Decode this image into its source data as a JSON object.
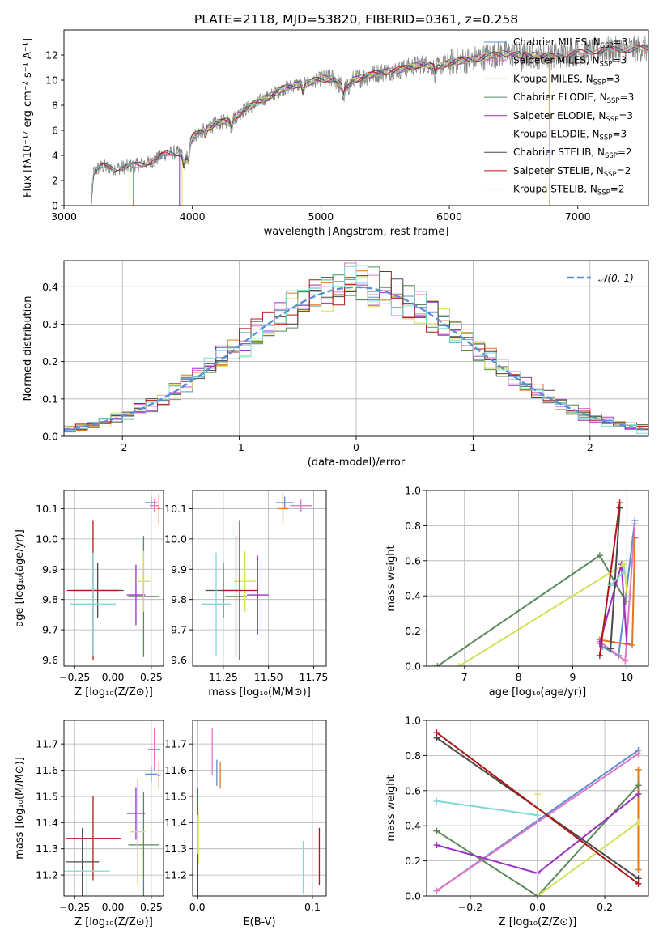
{
  "figure_title": "PLATE=2118, MJD=53820, FIBERID=0361, z=0.258",
  "colors": {
    "Chabrier MILES": "#5b8dd6",
    "Salpeter MILES": "#e377c2",
    "Kroupa MILES": "#e0781c",
    "Chabrier ELODIE": "#5a8a5c",
    "Salpeter ELODIE": "#9b30c4",
    "Kroupa ELODIE": "#d4e055",
    "Chabrier STELIB": "#4a4a4a",
    "Salpeter STELIB": "#b01818",
    "Kroupa STELIB": "#7fd8d8",
    "gaussian": "#5b8dd6",
    "data": "#888888"
  },
  "chart_data": [
    {
      "id": "spectrum",
      "type": "line",
      "xlabel": "wavelength [Angstrom, rest frame]",
      "ylabel": "Flux [fλ10⁻¹⁷ erg cm⁻² s⁻¹ A⁻¹]",
      "xlim": [
        3000,
        7550
      ],
      "ylim": [
        0,
        14
      ],
      "xticks": [
        3000,
        4000,
        5000,
        6000,
        7000
      ],
      "yticks": [
        0,
        2,
        4,
        6,
        8,
        10,
        12
      ],
      "legend_position": "right",
      "legend": [
        {
          "text": "Chabrier MILES, N",
          "sub": "SSP",
          "tail": "=3",
          "color": "#5b8dd6"
        },
        {
          "text": "Salpeter MILES, N",
          "sub": "SSP",
          "tail": "=3",
          "color": "#e377c2"
        },
        {
          "text": "Kroupa MILES, N",
          "sub": "SSP",
          "tail": "=3",
          "color": "#e0781c"
        },
        {
          "text": "Chabrier ELODIE, N",
          "sub": "SSP",
          "tail": "=3",
          "color": "#5a8a5c"
        },
        {
          "text": "Salpeter ELODIE, N",
          "sub": "SSP",
          "tail": "=3",
          "color": "#9b30c4"
        },
        {
          "text": "Kroupa ELODIE, N",
          "sub": "SSP",
          "tail": "=3",
          "color": "#d4e055"
        },
        {
          "text": "Chabrier STELIB, N",
          "sub": "SSP",
          "tail": "=2",
          "color": "#4a4a4a"
        },
        {
          "text": "Salpeter STELIB, N",
          "sub": "SSP",
          "tail": "=2",
          "color": "#b01818"
        },
        {
          "text": "Kroupa STELIB, N",
          "sub": "SSP",
          "tail": "=2",
          "color": "#7fd8d8"
        }
      ],
      "continuum": [
        [
          3210,
          0
        ],
        [
          3230,
          2.6
        ],
        [
          3260,
          2.9
        ],
        [
          3300,
          3.1
        ],
        [
          3400,
          3.0
        ],
        [
          3500,
          3.1
        ],
        [
          3600,
          3.3
        ],
        [
          3700,
          3.6
        ],
        [
          3800,
          4.2
        ],
        [
          3900,
          4.2
        ],
        [
          3950,
          3.8
        ],
        [
          4000,
          5.5
        ],
        [
          4100,
          6.1
        ],
        [
          4200,
          6.6
        ],
        [
          4300,
          6.8
        ],
        [
          4400,
          7.6
        ],
        [
          4500,
          8.2
        ],
        [
          4600,
          8.7
        ],
        [
          4700,
          9.3
        ],
        [
          4800,
          9.6
        ],
        [
          4900,
          9.8
        ],
        [
          5000,
          10.1
        ],
        [
          5100,
          10.1
        ],
        [
          5150,
          9.6
        ],
        [
          5200,
          9.3
        ],
        [
          5250,
          10.0
        ],
        [
          5350,
          10.3
        ],
        [
          5450,
          10.6
        ],
        [
          5600,
          10.8
        ],
        [
          5800,
          11.3
        ],
        [
          5900,
          11.0
        ],
        [
          6000,
          11.4
        ],
        [
          6200,
          11.7
        ],
        [
          6400,
          12.1
        ],
        [
          6600,
          12.0
        ],
        [
          6800,
          11.9
        ],
        [
          7000,
          12.2
        ],
        [
          7200,
          12.4
        ],
        [
          7550,
          12.5
        ]
      ],
      "model_starts": {
        "Chabrier MILES": 3540,
        "Salpeter MILES": 3540,
        "Kroupa MILES": 3540,
        "Chabrier ELODIE": 3900,
        "Salpeter ELODIE": 3900,
        "Kroupa ELODIE": 3920,
        "Chabrier STELIB": 3210,
        "Salpeter STELIB": 3210,
        "Kroupa STELIB": 3210
      },
      "model_ends": {
        "Kroupa ELODIE": 6780,
        "Chabrier ELODIE": 6780,
        "Salpeter ELODIE": 6780
      }
    },
    {
      "id": "residuals",
      "type": "histogram",
      "xlabel": "(data-model)/error",
      "ylabel": "Normed distribution",
      "xlim": [
        -2.5,
        2.5
      ],
      "ylim": [
        0,
        0.47
      ],
      "xticks": [
        -2,
        -1,
        0,
        1,
        2
      ],
      "yticks": [
        0.0,
        0.1,
        0.2,
        0.3,
        0.4
      ],
      "grid": true,
      "legend_label": "𝒩(0, 1)",
      "legend_position": "top-right",
      "bins": {
        "start": -2.5,
        "width": 0.1,
        "count": 50
      }
    },
    {
      "id": "age_vs_Z",
      "type": "errorbar",
      "xlabel": "Z [log₁₀(Z/Z⊙)]",
      "ylabel": "age  [log₁₀(age/yr)]",
      "xlim": [
        -0.32,
        0.33
      ],
      "ylim": [
        9.58,
        10.16
      ],
      "xticks": [
        -0.25,
        0.0,
        0.25
      ],
      "xticklabels": [
        "−0.25",
        "0.00",
        "0.25"
      ],
      "yticks": [
        9.6,
        9.7,
        9.8,
        9.9,
        10.0,
        10.1
      ],
      "points": [
        {
          "model": "Chabrier MILES",
          "x": 0.25,
          "xerr": 0.04,
          "y": 10.12,
          "yerr": 0.02
        },
        {
          "model": "Salpeter MILES",
          "x": 0.27,
          "xerr": 0.03,
          "y": 10.11,
          "yerr": 0.02
        },
        {
          "model": "Kroupa MILES",
          "x": 0.3,
          "xerr": 0.01,
          "y": 10.1,
          "yerr": 0.05
        },
        {
          "model": "Chabrier ELODIE",
          "x": 0.2,
          "xerr": 0.1,
          "y": 9.81,
          "yerr": 0.2
        },
        {
          "model": "Salpeter ELODIE",
          "x": 0.15,
          "xerr": 0.06,
          "y": 9.815,
          "yerr": 0.1
        },
        {
          "model": "Kroupa ELODIE",
          "x": 0.2,
          "xerr": 0.05,
          "y": 9.86,
          "yerr": 0.1
        },
        {
          "model": "Chabrier STELIB",
          "x": -0.1,
          "xerr": 0.17,
          "y": 9.83,
          "yerr": 0.09
        },
        {
          "model": "Salpeter STELIB",
          "x": -0.13,
          "xerr": 0.17,
          "y": 9.83,
          "yerr": 0.23
        },
        {
          "model": "Kroupa STELIB",
          "x": -0.13,
          "xerr": 0.15,
          "y": 9.785,
          "yerr": 0.17
        }
      ]
    },
    {
      "id": "age_vs_mass",
      "type": "errorbar",
      "xlabel": "mass [log₁₀(M/M⊙)]",
      "xlim": [
        11.08,
        11.82
      ],
      "ylim": [
        9.58,
        10.16
      ],
      "xticks": [
        11.25,
        11.5,
        11.75
      ],
      "xticklabels": [
        "11.25",
        "11.50",
        "11.75"
      ],
      "yticks": [
        9.6,
        9.7,
        9.8,
        9.9,
        10.0,
        10.1
      ],
      "points": [
        {
          "model": "Chabrier MILES",
          "x": 11.59,
          "xerr": 0.05,
          "y": 10.12,
          "yerr": 0.02
        },
        {
          "model": "Salpeter MILES",
          "x": 11.68,
          "xerr": 0.06,
          "y": 10.11,
          "yerr": 0.02
        },
        {
          "model": "Kroupa MILES",
          "x": 11.58,
          "xerr": 0.03,
          "y": 10.1,
          "yerr": 0.05
        },
        {
          "model": "Chabrier ELODIE",
          "x": 11.32,
          "xerr": 0.06,
          "y": 9.81,
          "yerr": 0.2
        },
        {
          "model": "Salpeter ELODIE",
          "x": 11.44,
          "xerr": 0.06,
          "y": 9.815,
          "yerr": 0.13
        },
        {
          "model": "Kroupa ELODIE",
          "x": 11.37,
          "xerr": 0.06,
          "y": 9.86,
          "yerr": 0.1
        },
        {
          "model": "Chabrier STELIB",
          "x": 11.25,
          "xerr": 0.1,
          "y": 9.83,
          "yerr": 0.09
        },
        {
          "model": "Salpeter STELIB",
          "x": 11.34,
          "xerr": 0.1,
          "y": 9.83,
          "yerr": 0.23
        },
        {
          "model": "Kroupa STELIB",
          "x": 11.21,
          "xerr": 0.08,
          "y": 9.785,
          "yerr": 0.17
        }
      ]
    },
    {
      "id": "weight_vs_age",
      "type": "line",
      "xlabel": "age  [log₁₀(age/yr)]",
      "ylabel": "mass weight",
      "xlim": [
        6.3,
        10.4
      ],
      "ylim": [
        0,
        1.0
      ],
      "xticks": [
        7,
        8,
        9,
        10
      ],
      "yticks": [
        0.0,
        0.2,
        0.4,
        0.6,
        0.8,
        1.0
      ],
      "series": [
        {
          "model": "Chabrier MILES",
          "points": [
            [
              9.55,
              0.11
            ],
            [
              9.85,
              0.06
            ],
            [
              10.15,
              0.83
            ]
          ]
        },
        {
          "model": "Salpeter MILES",
          "points": [
            [
              9.5,
              0.14
            ],
            [
              9.97,
              0.03
            ],
            [
              10.15,
              0.81
            ]
          ]
        },
        {
          "model": "Kroupa MILES",
          "points": [
            [
              9.5,
              0.15
            ],
            [
              10.1,
              0.12
            ],
            [
              10.15,
              0.73
            ]
          ]
        },
        {
          "model": "Chabrier ELODIE",
          "points": [
            [
              6.5,
              0.0
            ],
            [
              9.5,
              0.63
            ],
            [
              9.98,
              0.37
            ]
          ]
        },
        {
          "model": "Salpeter ELODIE",
          "points": [
            [
              9.5,
              0.13
            ],
            [
              9.9,
              0.58
            ],
            [
              10.0,
              0.13
            ]
          ]
        },
        {
          "model": "Kroupa ELODIE",
          "points": [
            [
              6.9,
              0.0
            ],
            [
              9.95,
              0.58
            ],
            [
              10.0,
              0.42
            ]
          ]
        },
        {
          "model": "Chabrier STELIB",
          "points": [
            [
              9.7,
              0.1
            ],
            [
              9.87,
              0.9
            ]
          ]
        },
        {
          "model": "Salpeter STELIB",
          "points": [
            [
              9.5,
              0.06
            ],
            [
              9.87,
              0.93
            ]
          ]
        },
        {
          "model": "Kroupa STELIB",
          "points": [
            [
              9.7,
              0.46
            ],
            [
              9.95,
              0.54
            ]
          ]
        }
      ]
    },
    {
      "id": "mass_vs_Z",
      "type": "errorbar",
      "xlabel": "Z [log₁₀(Z/Z⊙)]",
      "ylabel": "mass [log₁₀(M/M⊙)]",
      "xlim": [
        -0.32,
        0.33
      ],
      "ylim": [
        11.12,
        11.79
      ],
      "xticks": [
        -0.25,
        0.0,
        0.25
      ],
      "xticklabels": [
        "−0.25",
        "0.00",
        "0.25"
      ],
      "yticks": [
        11.2,
        11.3,
        11.4,
        11.5,
        11.6,
        11.7
      ],
      "points": [
        {
          "model": "Chabrier MILES",
          "x": 0.25,
          "xerr": 0.04,
          "y": 11.585,
          "yerr": 0.03
        },
        {
          "model": "Salpeter MILES",
          "x": 0.27,
          "xerr": 0.04,
          "y": 11.68,
          "yerr": 0.08
        },
        {
          "model": "Kroupa MILES",
          "x": 0.3,
          "xerr": 0.01,
          "y": 11.58,
          "yerr": 0.05
        },
        {
          "model": "Chabrier ELODIE",
          "x": 0.2,
          "xerr": 0.1,
          "y": 11.315,
          "yerr": 0.2
        },
        {
          "model": "Salpeter ELODIE",
          "x": 0.15,
          "xerr": 0.06,
          "y": 11.435,
          "yerr": 0.1
        },
        {
          "model": "Kroupa ELODIE",
          "x": 0.16,
          "xerr": 0.05,
          "y": 11.365,
          "yerr": 0.2
        },
        {
          "model": "Chabrier STELIB",
          "x": -0.2,
          "xerr": 0.11,
          "y": 11.25,
          "yerr": 0.13
        },
        {
          "model": "Salpeter STELIB",
          "x": -0.13,
          "xerr": 0.18,
          "y": 11.34,
          "yerr": 0.16
        },
        {
          "model": "Kroupa STELIB",
          "x": -0.17,
          "xerr": 0.15,
          "y": 11.215,
          "yerr": 0.12
        }
      ]
    },
    {
      "id": "mass_vs_EBV",
      "type": "errorbar",
      "xlabel": "E(B-V)",
      "xlim": [
        -0.004,
        0.112
      ],
      "ylim": [
        11.12,
        11.79
      ],
      "xticks": [
        0.0,
        0.1
      ],
      "xticklabels": [
        "0.0",
        "0.1"
      ],
      "yticks": [
        11.2,
        11.3,
        11.4,
        11.5,
        11.6,
        11.7
      ],
      "points": [
        {
          "model": "Chabrier MILES",
          "x": 0.017,
          "xerr": 0.0,
          "y": 11.59,
          "yerr": 0.05
        },
        {
          "model": "Salpeter MILES",
          "x": 0.013,
          "xerr": 0.0,
          "y": 11.67,
          "yerr": 0.09
        },
        {
          "model": "Kroupa MILES",
          "x": 0.02,
          "xerr": 0.0,
          "y": 11.58,
          "yerr": 0.05
        },
        {
          "model": "Chabrier ELODIE",
          "x": 0.0,
          "xerr": 0.0,
          "y": 11.2,
          "yerr": 0.05
        },
        {
          "model": "Salpeter ELODIE",
          "x": 0.0,
          "xerr": 0.0,
          "y": 11.48,
          "yerr": 0.05
        },
        {
          "model": "Kroupa ELODIE",
          "x": 0.001,
          "xerr": 0.0,
          "y": 11.34,
          "yerr": 0.1
        },
        {
          "model": "Chabrier STELIB",
          "x": 0.0,
          "xerr": 0.0,
          "y": 11.2,
          "yerr": 0.08
        },
        {
          "model": "Salpeter STELIB",
          "x": 0.106,
          "xerr": 0.0,
          "y": 11.27,
          "yerr": 0.11
        },
        {
          "model": "Kroupa STELIB",
          "x": 0.092,
          "xerr": 0.0,
          "y": 11.23,
          "yerr": 0.1
        }
      ]
    },
    {
      "id": "weight_vs_Z",
      "type": "line",
      "xlabel": "Z [log₁₀(Z/Z⊙)]",
      "ylabel": "mass weight",
      "xlim": [
        -0.33,
        0.33
      ],
      "ylim": [
        0,
        1.0
      ],
      "xticks": [
        -0.2,
        0.0,
        0.2
      ],
      "xticklabels": [
        "−0.2",
        "0.0",
        "0.2"
      ],
      "yticks": [
        0.0,
        0.2,
        0.4,
        0.6,
        0.8,
        1.0
      ],
      "series": [
        {
          "model": "Chabrier MILES",
          "points": [
            [
              -0.3,
              0.03
            ],
            [
              0.3,
              0.83
            ]
          ]
        },
        {
          "model": "Salpeter MILES",
          "points": [
            [
              -0.3,
              0.03
            ],
            [
              0.3,
              0.81
            ]
          ]
        },
        {
          "model": "Kroupa MILES",
          "points": [
            [
              0.3,
              0.72
            ],
            [
              0.3,
              0.15
            ]
          ]
        },
        {
          "model": "Chabrier ELODIE",
          "points": [
            [
              -0.3,
              0.37
            ],
            [
              0.0,
              0.0
            ],
            [
              0.3,
              0.63
            ]
          ]
        },
        {
          "model": "Salpeter ELODIE",
          "points": [
            [
              -0.3,
              0.29
            ],
            [
              0.0,
              0.13
            ],
            [
              0.3,
              0.58
            ]
          ]
        },
        {
          "model": "Kroupa ELODIE",
          "points": [
            [
              0.0,
              0.58
            ],
            [
              0.0,
              0.0
            ],
            [
              0.3,
              0.42
            ]
          ]
        },
        {
          "model": "Chabrier STELIB",
          "points": [
            [
              -0.3,
              0.9
            ],
            [
              0.3,
              0.1
            ]
          ]
        },
        {
          "model": "Salpeter STELIB",
          "points": [
            [
              -0.3,
              0.93
            ],
            [
              0.3,
              0.07
            ]
          ]
        },
        {
          "model": "Kroupa STELIB",
          "points": [
            [
              -0.3,
              0.54
            ],
            [
              0.0,
              0.46
            ]
          ]
        }
      ]
    }
  ]
}
